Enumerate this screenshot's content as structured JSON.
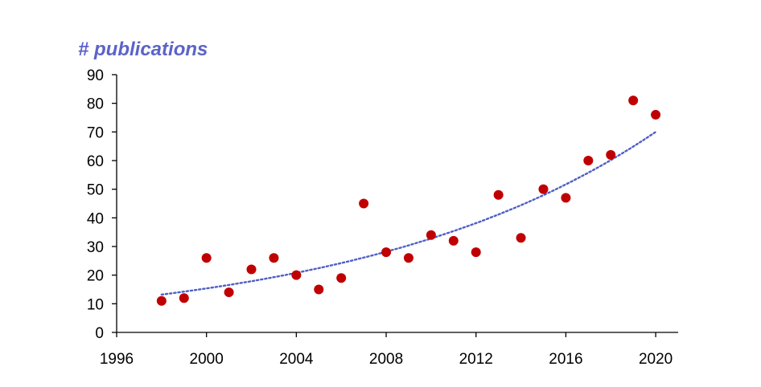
{
  "chart_data": {
    "type": "scatter",
    "title": "# publications",
    "xlabel": "",
    "ylabel": "",
    "xlim": [
      1996,
      2021
    ],
    "ylim": [
      0,
      90
    ],
    "xticks": [
      1996,
      2000,
      2004,
      2008,
      2012,
      2016,
      2020
    ],
    "yticks": [
      0,
      10,
      20,
      30,
      40,
      50,
      60,
      70,
      80,
      90
    ],
    "grid": false,
    "legend": "none",
    "series": [
      {
        "name": "publications",
        "color": "#c00000",
        "x": [
          1998,
          1999,
          2000,
          2001,
          2002,
          2003,
          2004,
          2005,
          2006,
          2007,
          2008,
          2009,
          2010,
          2011,
          2012,
          2013,
          2014,
          2015,
          2016,
          2017,
          2018,
          2019,
          2020
        ],
        "y": [
          11,
          12,
          26,
          14,
          22,
          26,
          20,
          15,
          19,
          45,
          28,
          26,
          34,
          32,
          28,
          48,
          33,
          50,
          47,
          60,
          62,
          81,
          76
        ]
      }
    ],
    "trendline": {
      "name": "exponential trend",
      "style": "dotted",
      "color": "#4f5fc7",
      "x_range": [
        1998,
        2020
      ],
      "y_start": 13.2,
      "y_end": 70
    },
    "title_color": "#5b63c9"
  }
}
